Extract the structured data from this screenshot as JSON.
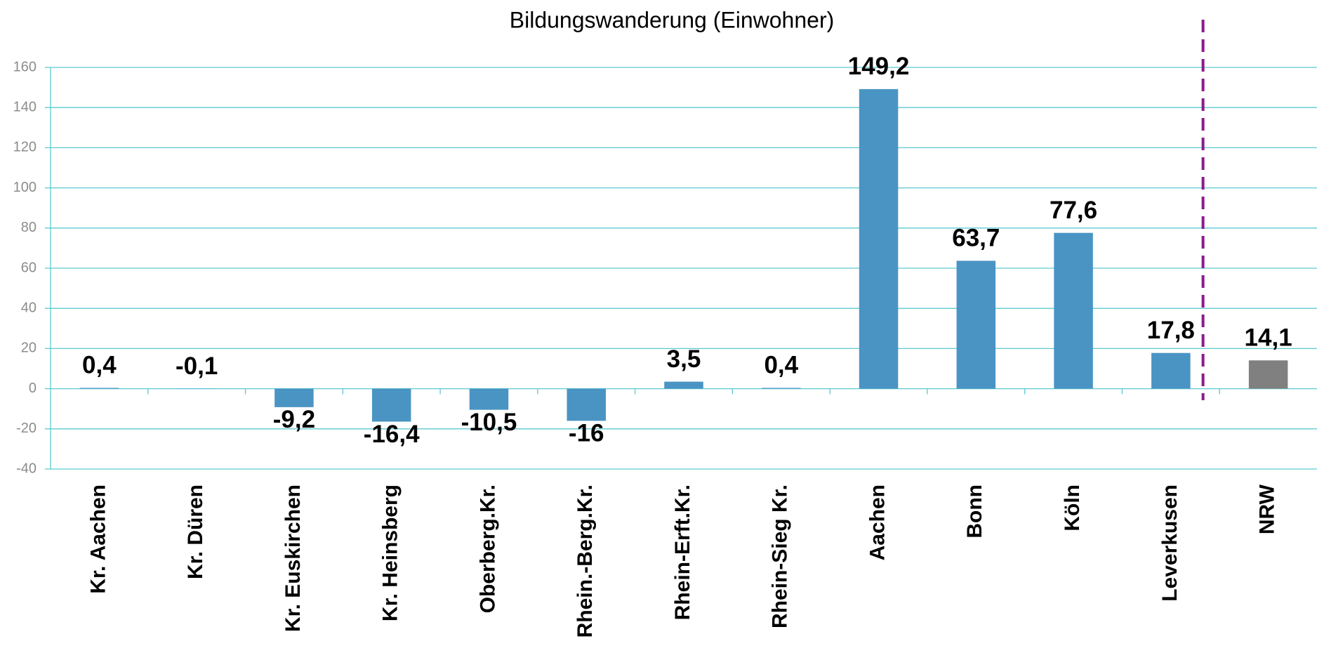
{
  "chart_data": {
    "type": "bar",
    "title": "Bildungswanderung (Einwohner)",
    "categories": [
      "Kr. Aachen",
      "Kr. Düren",
      "Kr. Euskirchen",
      "Kr. Heinsberg",
      "Oberberg.Kr.",
      "Rhein.-Berg.Kr.",
      "Rhein-Erft.Kr.",
      "Rhein-Sieg Kr.",
      "Aachen",
      "Bonn",
      "Köln",
      "Leverkusen",
      "NRW"
    ],
    "values": [
      0.4,
      -0.1,
      -9.2,
      -16.4,
      -10.5,
      -16,
      3.5,
      0.4,
      149.2,
      63.7,
      77.6,
      17.8,
      14.1
    ],
    "value_labels": [
      "0,4",
      "-0,1",
      "-9,2",
      "-16,4",
      "-10,5",
      "-16",
      "3,5",
      "0,4",
      "149,2",
      "63,7",
      "77,6",
      "17,8",
      "14,1"
    ],
    "colors": [
      "#4a94c4",
      "#4a94c4",
      "#4a94c4",
      "#4a94c4",
      "#4a94c4",
      "#4a94c4",
      "#4a94c4",
      "#4a94c4",
      "#4a94c4",
      "#4a94c4",
      "#4a94c4",
      "#4a94c4",
      "#808080"
    ],
    "ylim": [
      -40,
      160
    ],
    "yticks": [
      -40,
      -20,
      0,
      20,
      40,
      60,
      80,
      100,
      120,
      140,
      160
    ],
    "grid": true
  }
}
